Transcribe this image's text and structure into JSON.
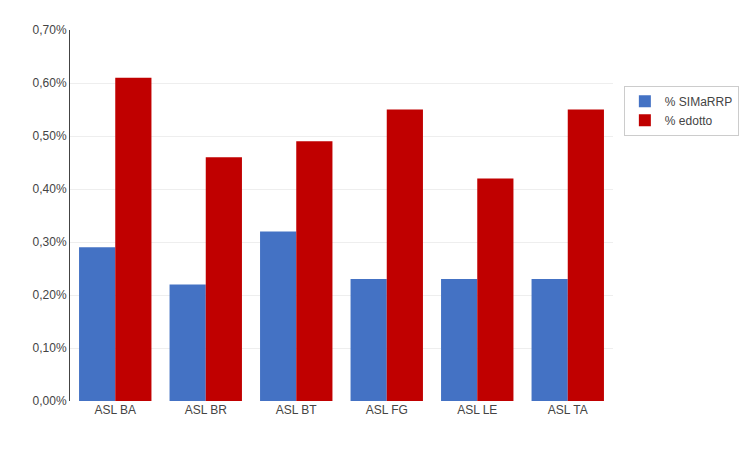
{
  "chart_data": {
    "type": "bar",
    "categories": [
      "ASL BA",
      "ASL BR",
      "ASL BT",
      "ASL FG",
      "ASL LE",
      "ASL TA"
    ],
    "series": [
      {
        "name": "% SIMaRRP",
        "color": "#4472C4",
        "values": [
          0.0029,
          0.0022,
          0.0032,
          0.0023,
          0.0023,
          0.0023
        ]
      },
      {
        "name": "% edotto",
        "color": "#C00000",
        "values": [
          0.0061,
          0.0046,
          0.0049,
          0.0055,
          0.0042,
          0.0055
        ]
      }
    ],
    "ylim": [
      0,
      0.007
    ],
    "yticks": [
      {
        "value": 0.0,
        "label": "0,00%"
      },
      {
        "value": 0.001,
        "label": "0,10%"
      },
      {
        "value": 0.002,
        "label": "0,20%"
      },
      {
        "value": 0.003,
        "label": "0,30%"
      },
      {
        "value": 0.004,
        "label": "0,40%"
      },
      {
        "value": 0.005,
        "label": "0,50%"
      },
      {
        "value": 0.006,
        "label": "0,60%"
      },
      {
        "value": 0.007,
        "label": "0,70%"
      }
    ],
    "grid": true,
    "legend": "right"
  }
}
